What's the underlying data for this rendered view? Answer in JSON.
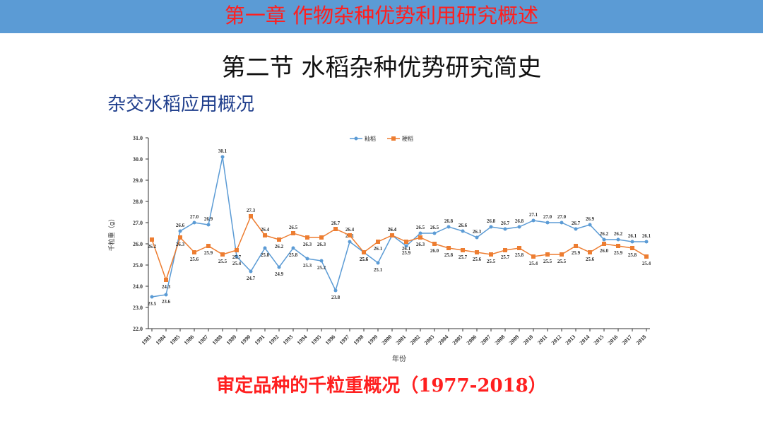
{
  "header": {
    "chapter_title": "第一章  作物杂种优势利用研究概述"
  },
  "section_title": "第二节 水稻杂种优势研究简史",
  "subheading": "杂交水稻应用概况",
  "caption": "审定品种的千粒重概况（1977-2018）",
  "colors": {
    "indica": "#5b9bd5",
    "japonica": "#ed7d31",
    "header_bar": "#5b9bd5",
    "accent_red": "#ff1f1f",
    "subheading": "#1f3e8c"
  },
  "chart_data": {
    "type": "line",
    "xlabel": "年份",
    "ylabel": "千粒重（g）",
    "ylim": [
      22.0,
      31.0
    ],
    "yticks": [
      "22.0",
      "23.0",
      "24.0",
      "25.0",
      "26.0",
      "27.0",
      "28.0",
      "29.0",
      "30.0",
      "31.0"
    ],
    "grid": false,
    "legend_position": "top-right",
    "categories": [
      "1983",
      "1984",
      "1985",
      "1986",
      "1987",
      "1988",
      "1989",
      "1990",
      "1991",
      "1992",
      "1993",
      "1994",
      "1995",
      "1996",
      "1997",
      "1998",
      "1999",
      "2000",
      "2001",
      "2002",
      "2003",
      "2004",
      "2005",
      "2006",
      "2007",
      "2008",
      "2009",
      "2010",
      "2011",
      "2012",
      "2013",
      "2014",
      "2015",
      "2016",
      "2017",
      "2018"
    ],
    "series": [
      {
        "name": "籼稻",
        "color": "#5b9bd5",
        "marker": "circle",
        "values": [
          23.5,
          23.6,
          26.6,
          27.0,
          26.9,
          30.1,
          25.4,
          24.7,
          25.8,
          24.9,
          25.8,
          25.3,
          25.2,
          23.8,
          26.1,
          25.6,
          25.1,
          26.4,
          25.9,
          26.5,
          26.5,
          26.8,
          26.6,
          26.3,
          26.8,
          26.7,
          26.8,
          27.1,
          27.0,
          27.0,
          26.7,
          26.9,
          26.2,
          26.2,
          26.1,
          26.1
        ],
        "labels": [
          "23.5",
          "23.6",
          "26.6",
          "27.0",
          "26.9",
          "30.1",
          "25.4",
          "24.7",
          "25.8",
          "24.9",
          "25.8",
          "25.3",
          "25.2",
          "23.8",
          "26.1",
          "25.6",
          "25.1",
          "26.4",
          "25.9",
          "26.5",
          "26.5",
          "26.8",
          "26.6",
          "26.3",
          "26.8",
          "26.7",
          "26.8",
          "27.1",
          "27.0",
          "27.0",
          "26.7",
          "26.9",
          "26.2",
          "26.2",
          "26.1",
          "26.1"
        ]
      },
      {
        "name": "粳稻",
        "color": "#ed7d31",
        "marker": "square",
        "values": [
          26.2,
          24.3,
          26.3,
          25.6,
          25.9,
          25.5,
          25.7,
          27.3,
          26.4,
          26.2,
          26.5,
          26.3,
          26.3,
          26.7,
          26.4,
          25.6,
          26.1,
          26.4,
          26.1,
          26.3,
          26.0,
          25.8,
          25.7,
          25.6,
          25.5,
          25.7,
          25.8,
          25.4,
          25.5,
          25.5,
          25.9,
          25.6,
          26.0,
          25.9,
          25.8,
          25.4
        ],
        "labels": [
          "26.2",
          "24.3",
          "26.3",
          "25.6",
          "25.9",
          "25.5",
          "25.7",
          "27.3",
          "26.4",
          "26.2",
          "26.5",
          "26.3",
          "26.3",
          "26.7",
          "26.4",
          "25.6",
          "26.1",
          "26.4",
          "26.1",
          "26.3",
          "26.0",
          "25.8",
          "25.7",
          "25.6",
          "25.5",
          "25.7",
          "25.8",
          "25.4",
          "25.5",
          "25.5",
          "25.9",
          "25.6",
          "26.0",
          "25.9",
          "25.8",
          "25.4"
        ]
      }
    ]
  }
}
